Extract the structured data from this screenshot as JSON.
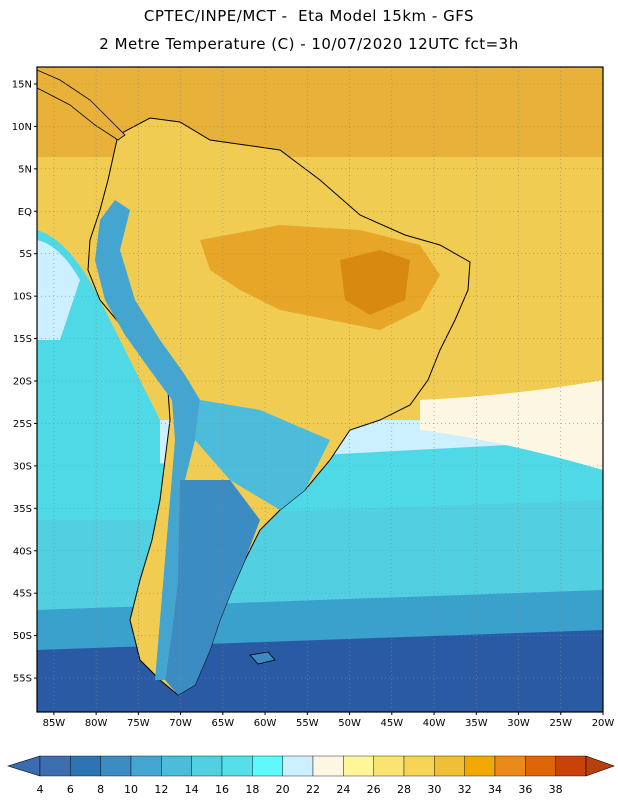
{
  "header": {
    "line1": "CPTEC/INPE/MCT -  Eta Model 15km - GFS",
    "line2": "2 Metre Temperature (C) - 10/07/2020 12UTC fct=3h"
  },
  "map": {
    "lon_range": [
      -87,
      -20
    ],
    "lat_range": [
      -59,
      17
    ],
    "lat_ticks": [
      "15N",
      "10N",
      "5N",
      "EQ",
      "5S",
      "10S",
      "15S",
      "20S",
      "25S",
      "30S",
      "35S",
      "40S",
      "45S",
      "50S",
      "55S"
    ],
    "lon_ticks": [
      "85W",
      "80W",
      "75W",
      "70W",
      "65W",
      "60W",
      "55W",
      "50W",
      "45W",
      "40W",
      "35W",
      "30W",
      "25W",
      "20W"
    ],
    "grid": "dotted",
    "colors": {
      "ocean_deep": "#2a5aa4",
      "ocean_mid": "#3aa0cc",
      "ocean_cyan": "#4fd8e6",
      "ocean_light": "#ccf0ff",
      "warm_pale": "#f5e6a8",
      "warm_yellow": "#f0cc52",
      "warm_orange": "#e8a628",
      "warm_dark": "#d88a10",
      "outline": "#000000"
    }
  },
  "colorbar": {
    "labels": [
      "4",
      "6",
      "8",
      "10",
      "12",
      "14",
      "16",
      "18",
      "20",
      "22",
      "24",
      "26",
      "28",
      "30",
      "32",
      "34",
      "36",
      "38"
    ],
    "colors": [
      "#3d6eb0",
      "#2c74b4",
      "#3a8cc2",
      "#44a6d0",
      "#4cbcda",
      "#52d0e2",
      "#56dfe9",
      "#5ff8fb",
      "#ccf0ff",
      "#fdf6e2",
      "#fff69a",
      "#f9e373",
      "#f5d456",
      "#efbf38",
      "#f2a800",
      "#ea8a1a",
      "#de6608",
      "#c8420a"
    ],
    "low_arrow_color": "#3a6cb2",
    "high_arrow_color": "#b8400e"
  }
}
